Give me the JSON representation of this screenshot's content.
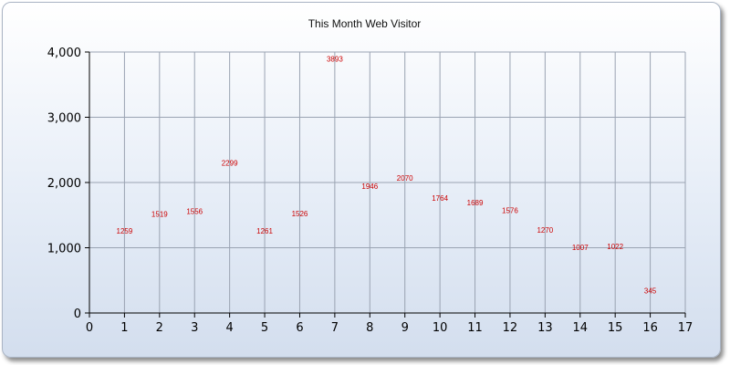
{
  "chart_data": {
    "type": "scatter",
    "title": "This Month Web Visitor",
    "xlabel": "",
    "ylabel": "",
    "xlim": [
      0,
      17
    ],
    "ylim": [
      0,
      4000
    ],
    "x_ticks": [
      "0",
      "1",
      "2",
      "3",
      "4",
      "5",
      "6",
      "7",
      "8",
      "9",
      "10",
      "11",
      "12",
      "13",
      "14",
      "15",
      "16",
      "17"
    ],
    "y_ticks": [
      "0",
      "1,000",
      "2,000",
      "3,000",
      "4,000"
    ],
    "grid": true,
    "legend": "none",
    "label_color": "#cc0000",
    "points": [
      {
        "x": 1,
        "y": 1259,
        "label": "1259"
      },
      {
        "x": 2,
        "y": 1519,
        "label": "1519"
      },
      {
        "x": 3,
        "y": 1556,
        "label": "1556"
      },
      {
        "x": 4,
        "y": 2299,
        "label": "2299"
      },
      {
        "x": 5,
        "y": 1261,
        "label": "1261"
      },
      {
        "x": 6,
        "y": 1526,
        "label": "1526"
      },
      {
        "x": 7,
        "y": 3893,
        "label": "3893"
      },
      {
        "x": 8,
        "y": 1946,
        "label": "1946"
      },
      {
        "x": 9,
        "y": 2070,
        "label": "2070"
      },
      {
        "x": 10,
        "y": 1764,
        "label": "1764"
      },
      {
        "x": 11,
        "y": 1689,
        "label": "1689"
      },
      {
        "x": 12,
        "y": 1576,
        "label": "1576"
      },
      {
        "x": 13,
        "y": 1270,
        "label": "1270"
      },
      {
        "x": 14,
        "y": 1007,
        "label": "1007"
      },
      {
        "x": 15,
        "y": 1022,
        "label": "1022"
      },
      {
        "x": 16,
        "y": 345,
        "label": "345"
      }
    ]
  }
}
